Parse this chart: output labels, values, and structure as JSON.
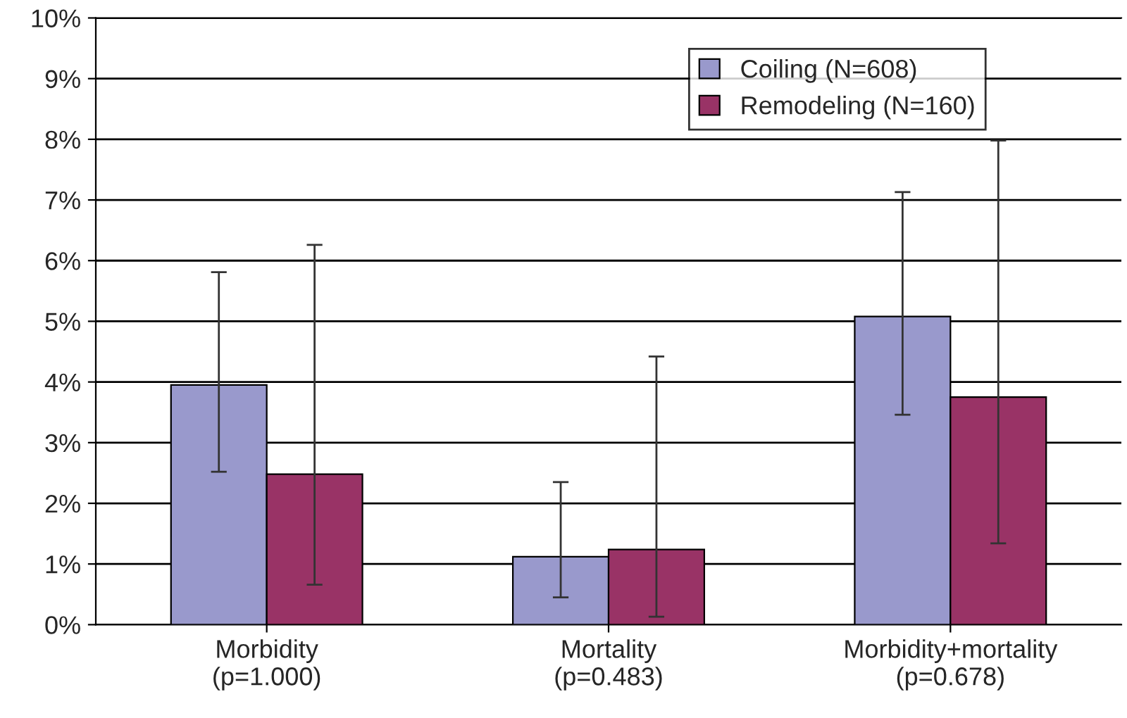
{
  "chart_data": {
    "type": "bar",
    "categories": [
      "Morbidity\n(p=1.000)",
      "Mortality\n(p=0.483)",
      "Morbidity+mortality\n(p=0.678)"
    ],
    "series": [
      {
        "name": "Coiling (N=608)",
        "color": "#9999cc",
        "values": [
          3.95,
          1.12,
          5.08
        ],
        "errors": [
          [
            2.52,
            5.81
          ],
          [
            0.45,
            2.35
          ],
          [
            3.46,
            7.13
          ]
        ]
      },
      {
        "name": "Remodeling (N=160)",
        "color": "#993366",
        "values": [
          2.48,
          1.24,
          3.75
        ],
        "errors": [
          [
            0.66,
            6.26
          ],
          [
            0.13,
            4.42
          ],
          [
            1.34,
            7.98
          ]
        ]
      }
    ],
    "ylim": [
      0,
      10
    ],
    "yticks": [
      {
        "value": 0,
        "label": "0%"
      },
      {
        "value": 1,
        "label": "1%"
      },
      {
        "value": 2,
        "label": "2%"
      },
      {
        "value": 3,
        "label": "3%"
      },
      {
        "value": 4,
        "label": "4%"
      },
      {
        "value": 5,
        "label": "5%"
      },
      {
        "value": 6,
        "label": "6%"
      },
      {
        "value": 7,
        "label": "7%"
      },
      {
        "value": 8,
        "label": "8%"
      },
      {
        "value": 9,
        "label": "9%"
      },
      {
        "value": 10,
        "label": "10%"
      }
    ],
    "grid": "y",
    "legend": "top right"
  }
}
